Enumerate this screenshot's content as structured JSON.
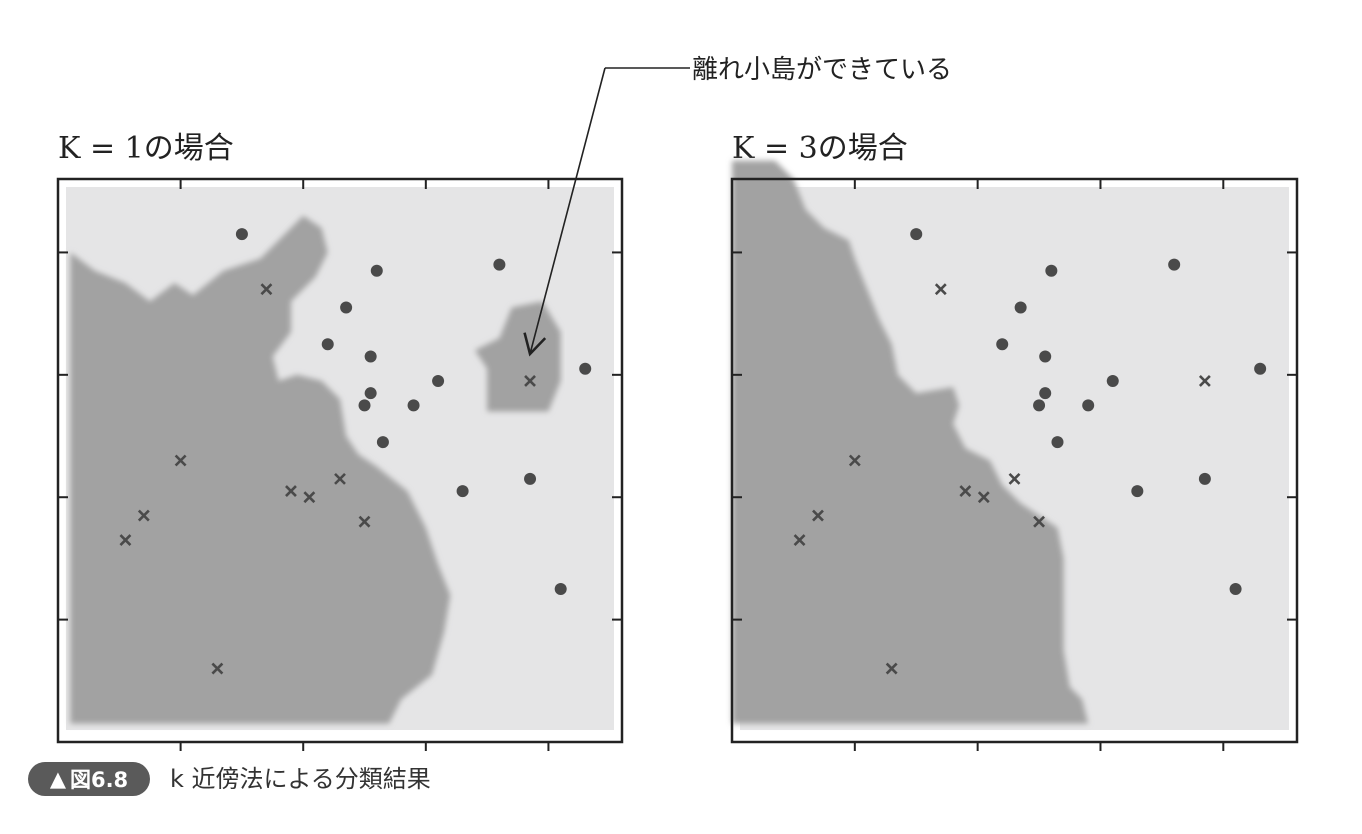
{
  "annotation": {
    "text": "離れ小島ができている"
  },
  "caption": {
    "badge": "図6.8",
    "text": "k 近傍法による分類結果"
  },
  "colors": {
    "cross_region": "#a2a2a2",
    "circle_region": "#e5e5e6",
    "marker": "#4a4a4a",
    "frame": "#222222",
    "badge": "#5a5a5a"
  },
  "chart_data": [
    {
      "type": "scatter",
      "title": "K = 1の場合",
      "xlabel": "",
      "ylabel": "",
      "xlim": [
        0,
        4.6
      ],
      "ylim": [
        0,
        4.6
      ],
      "grid": false,
      "legend": "none",
      "regions": {
        "cross_region": [
          [
            0.1,
            0.15
          ],
          [
            2.7,
            0.15
          ],
          [
            2.8,
            0.35
          ],
          [
            3.05,
            0.55
          ],
          [
            3.15,
            0.9
          ],
          [
            3.2,
            1.2
          ],
          [
            3.1,
            1.45
          ],
          [
            3.0,
            1.75
          ],
          [
            2.85,
            2.05
          ],
          [
            2.6,
            2.25
          ],
          [
            2.45,
            2.35
          ],
          [
            2.35,
            2.5
          ],
          [
            2.3,
            2.8
          ],
          [
            2.15,
            2.95
          ],
          [
            1.95,
            3.0
          ],
          [
            1.8,
            2.95
          ],
          [
            1.75,
            3.15
          ],
          [
            1.9,
            3.35
          ],
          [
            1.9,
            3.6
          ],
          [
            2.1,
            3.8
          ],
          [
            2.2,
            4.0
          ],
          [
            2.15,
            4.2
          ],
          [
            2.0,
            4.3
          ],
          [
            1.8,
            4.1
          ],
          [
            1.65,
            3.95
          ],
          [
            1.35,
            3.85
          ],
          [
            1.1,
            3.65
          ],
          [
            0.95,
            3.75
          ],
          [
            0.75,
            3.6
          ],
          [
            0.55,
            3.75
          ],
          [
            0.3,
            3.85
          ],
          [
            0.1,
            4.0
          ]
        ],
        "island": [
          [
            3.5,
            2.7
          ],
          [
            4.0,
            2.7
          ],
          [
            4.1,
            2.95
          ],
          [
            4.1,
            3.35
          ],
          [
            3.95,
            3.6
          ],
          [
            3.7,
            3.55
          ],
          [
            3.6,
            3.3
          ],
          [
            3.4,
            3.2
          ],
          [
            3.5,
            3.05
          ]
        ]
      },
      "crosses": [
        [
          0.55,
          1.65
        ],
        [
          0.7,
          1.85
        ],
        [
          1.0,
          2.3
        ],
        [
          1.3,
          0.6
        ],
        [
          1.7,
          3.7
        ],
        [
          1.9,
          2.05
        ],
        [
          2.05,
          2.0
        ],
        [
          2.3,
          2.15
        ],
        [
          2.5,
          1.8
        ],
        [
          3.85,
          2.95
        ]
      ],
      "circles": [
        [
          1.5,
          4.15
        ],
        [
          2.2,
          3.25
        ],
        [
          2.35,
          3.55
        ],
        [
          2.5,
          2.75
        ],
        [
          2.55,
          2.85
        ],
        [
          2.55,
          3.15
        ],
        [
          2.6,
          3.85
        ],
        [
          2.65,
          2.45
        ],
        [
          2.9,
          2.75
        ],
        [
          3.1,
          2.95
        ],
        [
          3.3,
          2.05
        ],
        [
          3.6,
          3.9
        ],
        [
          3.85,
          2.15
        ],
        [
          4.1,
          1.25
        ],
        [
          4.3,
          3.05
        ]
      ]
    },
    {
      "type": "scatter",
      "title": "K = 3の場合",
      "xlabel": "",
      "ylabel": "",
      "xlim": [
        0,
        4.6
      ],
      "ylim": [
        0,
        4.6
      ],
      "grid": false,
      "legend": "none",
      "regions": {
        "cross_region": [
          [
            0.0,
            0.15
          ],
          [
            2.9,
            0.15
          ],
          [
            2.85,
            0.35
          ],
          [
            2.75,
            0.45
          ],
          [
            2.7,
            0.75
          ],
          [
            2.7,
            1.05
          ],
          [
            2.7,
            1.5
          ],
          [
            2.65,
            1.75
          ],
          [
            2.35,
            1.95
          ],
          [
            2.2,
            2.1
          ],
          [
            2.1,
            2.3
          ],
          [
            1.9,
            2.4
          ],
          [
            1.8,
            2.6
          ],
          [
            1.85,
            2.75
          ],
          [
            1.8,
            2.9
          ],
          [
            1.5,
            2.85
          ],
          [
            1.35,
            3.0
          ],
          [
            1.3,
            3.25
          ],
          [
            1.2,
            3.45
          ],
          [
            1.1,
            3.7
          ],
          [
            1.0,
            3.95
          ],
          [
            0.95,
            4.1
          ],
          [
            0.75,
            4.2
          ],
          [
            0.6,
            4.35
          ],
          [
            0.5,
            4.6
          ],
          [
            0.35,
            4.75
          ],
          [
            0.0,
            4.75
          ]
        ]
      },
      "crosses": [
        [
          0.55,
          1.65
        ],
        [
          0.7,
          1.85
        ],
        [
          1.0,
          2.3
        ],
        [
          1.3,
          0.6
        ],
        [
          1.7,
          3.7
        ],
        [
          1.9,
          2.05
        ],
        [
          2.05,
          2.0
        ],
        [
          2.3,
          2.15
        ],
        [
          2.5,
          1.8
        ],
        [
          3.85,
          2.95
        ]
      ],
      "circles": [
        [
          1.5,
          4.15
        ],
        [
          2.2,
          3.25
        ],
        [
          2.35,
          3.55
        ],
        [
          2.5,
          2.75
        ],
        [
          2.55,
          2.85
        ],
        [
          2.55,
          3.15
        ],
        [
          2.6,
          3.85
        ],
        [
          2.65,
          2.45
        ],
        [
          2.9,
          2.75
        ],
        [
          3.1,
          2.95
        ],
        [
          3.3,
          2.05
        ],
        [
          3.6,
          3.9
        ],
        [
          3.85,
          2.15
        ],
        [
          4.1,
          1.25
        ],
        [
          4.3,
          3.05
        ]
      ]
    }
  ]
}
